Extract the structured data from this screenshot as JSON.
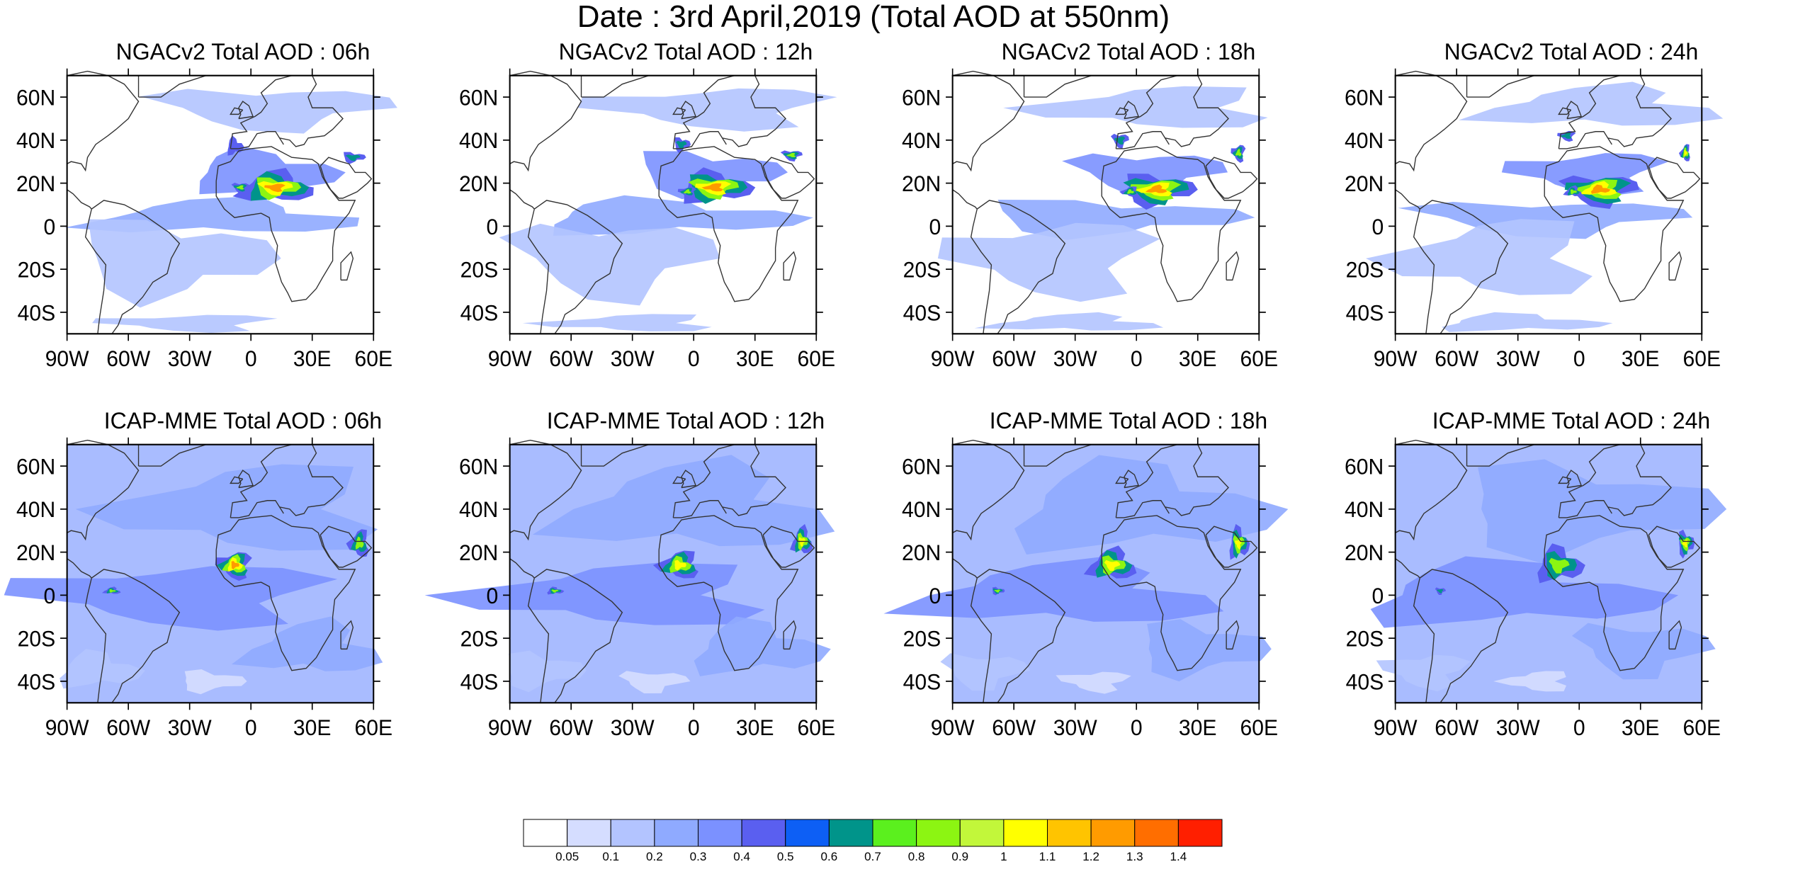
{
  "title": "Date : 3rd April,2019 (Total AOD at 550nm)",
  "panels": [
    {
      "title": "NGACv2 Total AOD : 06h",
      "model": "NGACv2",
      "hotspots": [
        {
          "lon": 12,
          "lat": 18,
          "level": 1.2,
          "rx": 22,
          "ry": 9
        },
        {
          "lon": -8,
          "lat": 37,
          "level": 0.5,
          "rx": 5,
          "ry": 5
        },
        {
          "lon": 50,
          "lat": 32,
          "level": 0.7,
          "rx": 7,
          "ry": 3
        },
        {
          "lon": -5,
          "lat": 18,
          "level": 0.8,
          "rx": 5,
          "ry": 3
        }
      ]
    },
    {
      "title": "NGACv2 Total AOD : 12h",
      "model": "NGACv2",
      "hotspots": [
        {
          "lon": 10,
          "lat": 18,
          "level": 1.2,
          "rx": 22,
          "ry": 9
        },
        {
          "lon": -6,
          "lat": 38,
          "level": 0.6,
          "rx": 5,
          "ry": 4
        },
        {
          "lon": 48,
          "lat": 33,
          "level": 0.8,
          "rx": 6,
          "ry": 3
        },
        {
          "lon": -3,
          "lat": 16,
          "level": 0.8,
          "rx": 5,
          "ry": 3
        }
      ]
    },
    {
      "title": "NGACv2 Total AOD : 18h",
      "model": "NGACv2",
      "hotspots": [
        {
          "lon": 10,
          "lat": 17,
          "level": 1.2,
          "rx": 22,
          "ry": 9
        },
        {
          "lon": -8,
          "lat": 40,
          "level": 0.6,
          "rx": 5,
          "ry": 4
        },
        {
          "lon": 50,
          "lat": 34,
          "level": 0.9,
          "rx": 4,
          "ry": 5
        },
        {
          "lon": -3,
          "lat": 16,
          "level": 0.8,
          "rx": 5,
          "ry": 3
        }
      ]
    },
    {
      "title": "NGACv2 Total AOD : 24h",
      "model": "NGACv2",
      "hotspots": [
        {
          "lon": 10,
          "lat": 17,
          "level": 1.3,
          "rx": 22,
          "ry": 9
        },
        {
          "lon": -6,
          "lat": 42,
          "level": 0.6,
          "rx": 5,
          "ry": 3
        },
        {
          "lon": 52,
          "lat": 34,
          "level": 1.0,
          "rx": 3,
          "ry": 5
        },
        {
          "lon": -3,
          "lat": 16,
          "level": 0.8,
          "rx": 5,
          "ry": 3
        }
      ]
    },
    {
      "title": "ICAP-MME Total AOD : 06h",
      "model": "ICAP-MME",
      "hotspots": [
        {
          "lon": -8,
          "lat": 14,
          "level": 1.3,
          "rx": 10,
          "ry": 8
        },
        {
          "lon": 53,
          "lat": 24,
          "level": 0.9,
          "rx": 6,
          "ry": 8
        },
        {
          "lon": -68,
          "lat": 2,
          "level": 0.8,
          "rx": 5,
          "ry": 2
        }
      ]
    },
    {
      "title": "ICAP-MME Total AOD : 12h",
      "model": "ICAP-MME",
      "hotspots": [
        {
          "lon": -7,
          "lat": 14,
          "level": 1.1,
          "rx": 12,
          "ry": 8
        },
        {
          "lon": 53,
          "lat": 25,
          "level": 1.0,
          "rx": 6,
          "ry": 8
        },
        {
          "lon": -68,
          "lat": 2,
          "level": 0.8,
          "rx": 5,
          "ry": 2
        }
      ]
    },
    {
      "title": "ICAP-MME Total AOD : 18h",
      "model": "ICAP-MME",
      "hotspots": [
        {
          "lon": -12,
          "lat": 14,
          "level": 1.0,
          "rx": 14,
          "ry": 9
        },
        {
          "lon": 50,
          "lat": 24,
          "level": 1.0,
          "rx": 6,
          "ry": 9
        },
        {
          "lon": -68,
          "lat": 2,
          "level": 0.8,
          "rx": 4,
          "ry": 2
        }
      ]
    },
    {
      "title": "ICAP-MME Total AOD : 24h",
      "model": "ICAP-MME",
      "hotspots": [
        {
          "lon": -10,
          "lat": 14,
          "level": 0.9,
          "rx": 14,
          "ry": 10
        },
        {
          "lon": 52,
          "lat": 24,
          "level": 1.0,
          "rx": 5,
          "ry": 7
        },
        {
          "lon": -68,
          "lat": 2,
          "level": 0.6,
          "rx": 3,
          "ry": 2
        }
      ]
    }
  ],
  "axes": {
    "lon_range": [
      -90,
      60
    ],
    "lat_range": [
      -50,
      70
    ],
    "x_ticks": [
      {
        "value": -90,
        "label": "90W"
      },
      {
        "value": -60,
        "label": "60W"
      },
      {
        "value": -30,
        "label": "30W"
      },
      {
        "value": 0,
        "label": "0"
      },
      {
        "value": 30,
        "label": "30E"
      },
      {
        "value": 60,
        "label": "60E"
      }
    ],
    "y_ticks": [
      {
        "value": 60,
        "label": "60N"
      },
      {
        "value": 40,
        "label": "40N"
      },
      {
        "value": 20,
        "label": "20N"
      },
      {
        "value": 0,
        "label": "0"
      },
      {
        "value": -20,
        "label": "20S"
      },
      {
        "value": -40,
        "label": "40S"
      }
    ]
  },
  "colorbar": {
    "colors": [
      "#ffffff",
      "#d5ddff",
      "#b3c4ff",
      "#8faaff",
      "#7b91ff",
      "#5a5ff0",
      "#0d5ff5",
      "#00948a",
      "#5bf01e",
      "#8cf512",
      "#c2f73a",
      "#ffff00",
      "#ffc400",
      "#ff9b00",
      "#ff6e00",
      "#ff1f00"
    ],
    "labels": [
      "0.05",
      "0.1",
      "0.2",
      "0.3",
      "0.4",
      "0.5",
      "0.6",
      "0.7",
      "0.8",
      "0.9",
      "1",
      "1.1",
      "1.2",
      "1.3",
      "1.4"
    ]
  }
}
